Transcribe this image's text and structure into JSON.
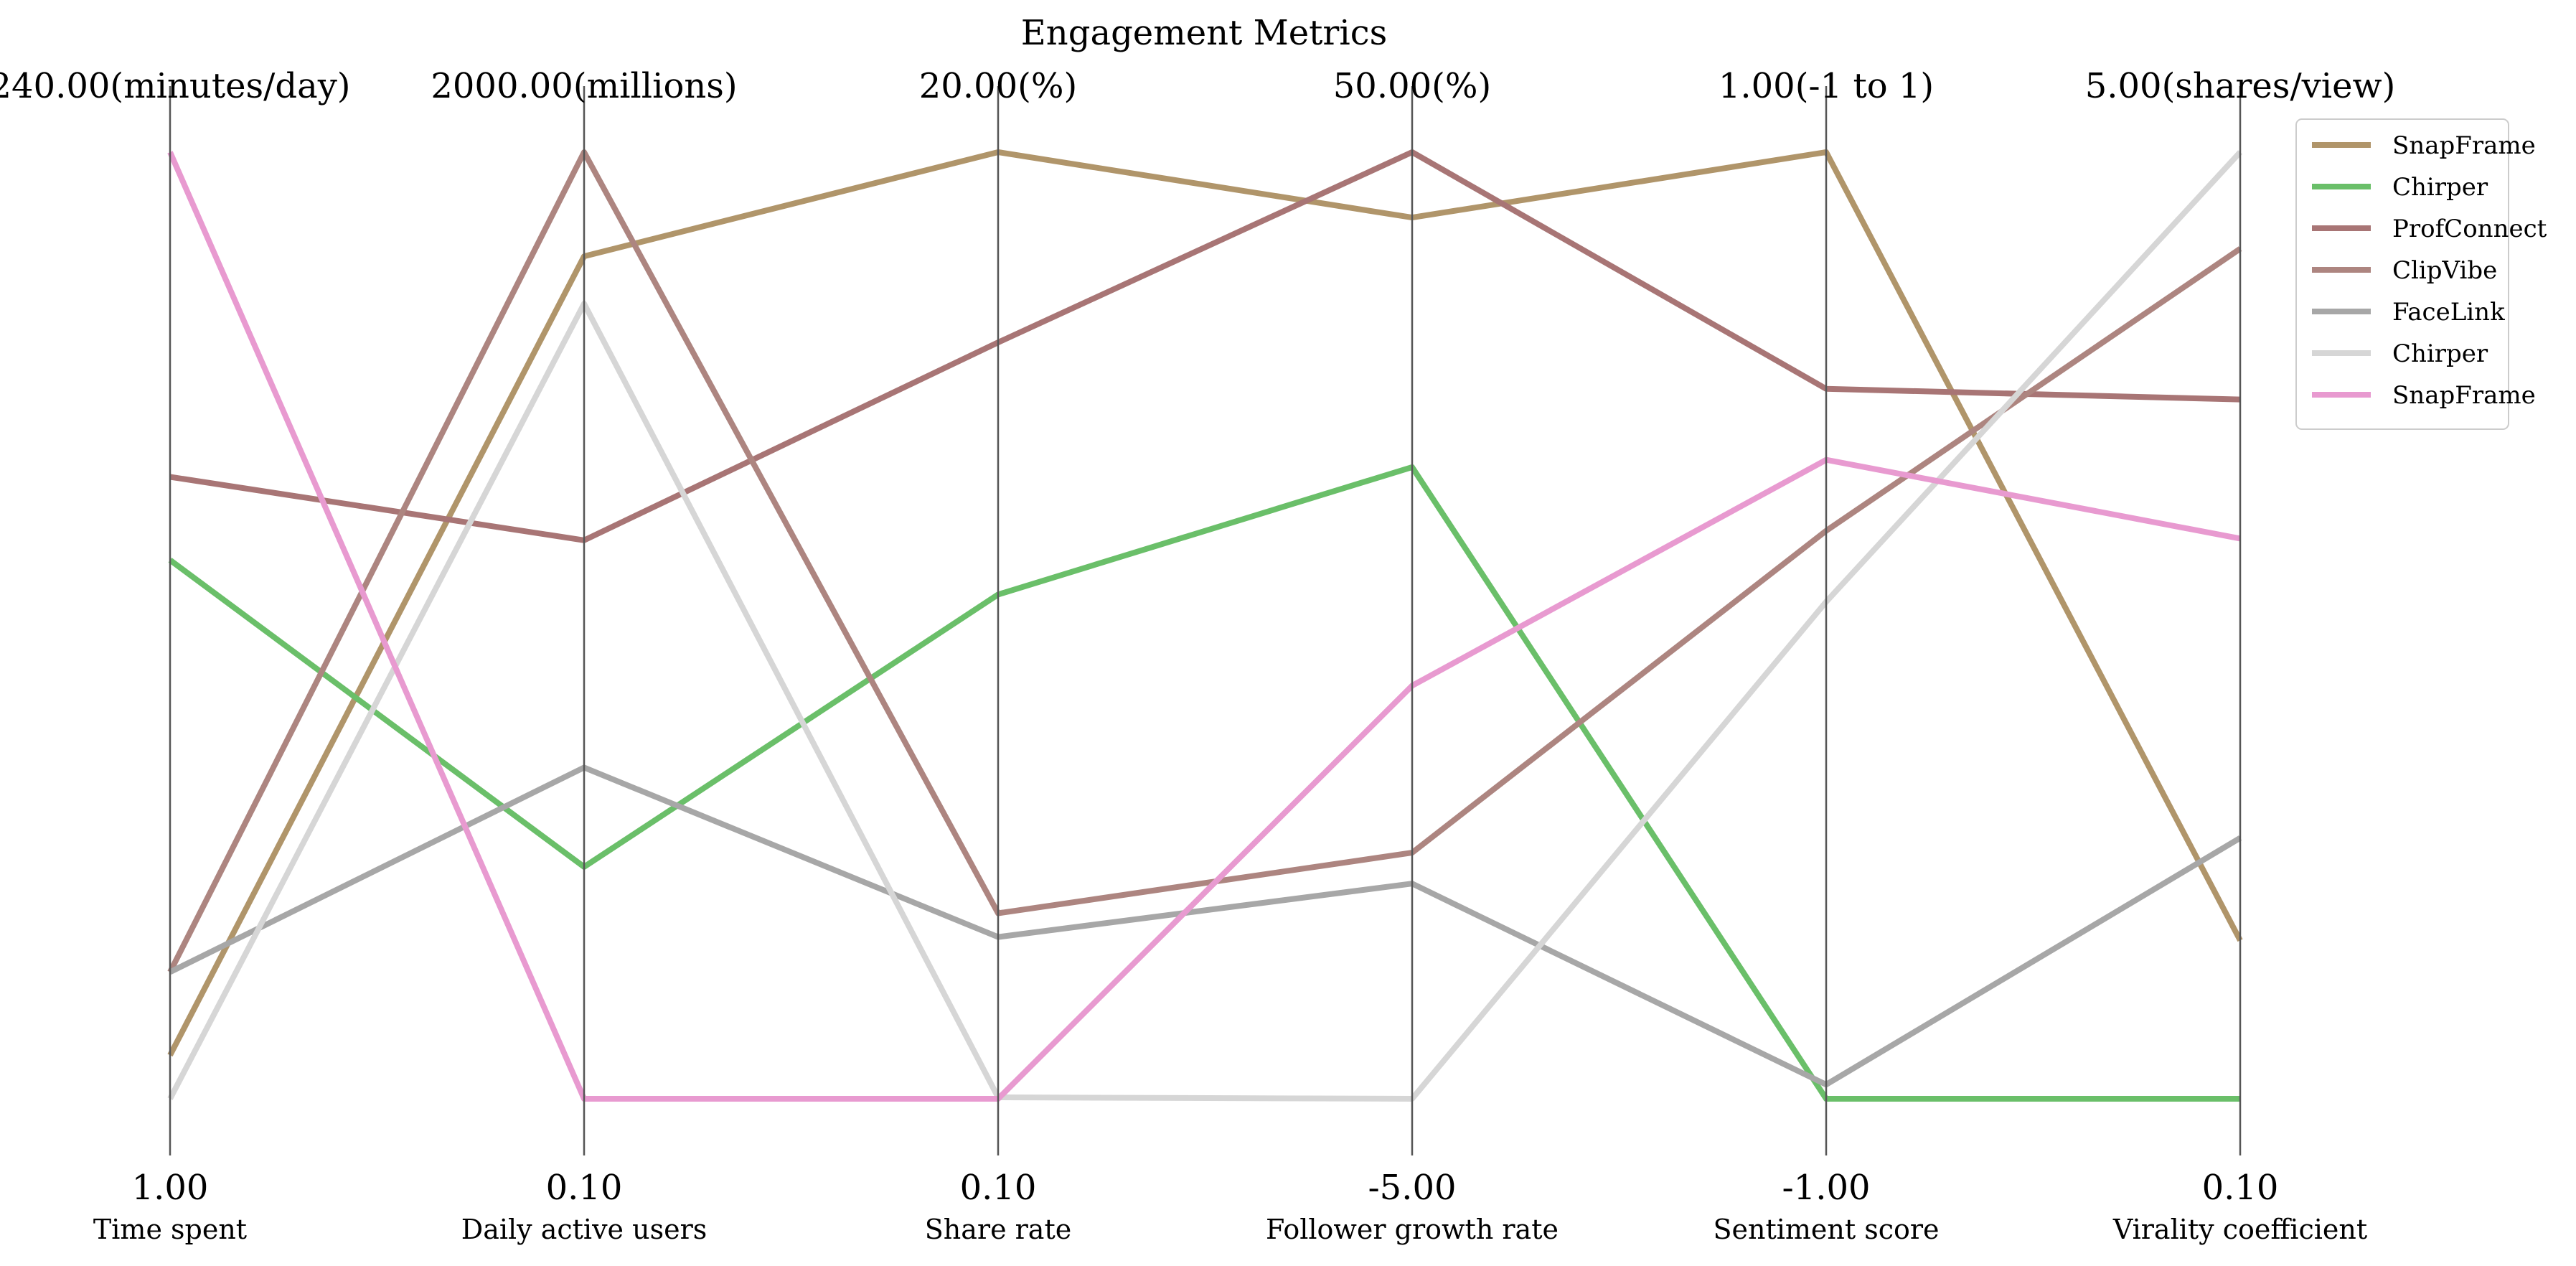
{
  "chart_data": {
    "type": "parallel_coordinates",
    "title": "Engagement Metrics",
    "axes": [
      {
        "name": "Time spent",
        "min_label": "1.00",
        "max_label": "240.00(minutes/day)"
      },
      {
        "name": "Daily active users",
        "min_label": "0.10",
        "max_label": "2000.00(millions)"
      },
      {
        "name": "Share rate",
        "min_label": "0.10",
        "max_label": "20.00(%)"
      },
      {
        "name": "Follower growth rate",
        "min_label": "-5.00",
        "max_label": "50.00(%)"
      },
      {
        "name": "Sentiment score",
        "min_label": "-1.00",
        "max_label": "1.00(-1 to 1)"
      },
      {
        "name": "Virality coefficient",
        "min_label": "0.10",
        "max_label": "5.00(shares/view)"
      }
    ],
    "axis_ranges": [
      [
        1,
        240
      ],
      [
        0.1,
        2000
      ],
      [
        0.1,
        20
      ],
      [
        -5,
        50
      ],
      [
        -1,
        1
      ],
      [
        0.1,
        5
      ]
    ],
    "series": [
      {
        "name": "SnapFrame",
        "color": "#b0956a",
        "values": [
          12,
          1780,
          20,
          46.2,
          1,
          0.92
        ]
      },
      {
        "name": "Chirper",
        "color": "#6abf69",
        "values": [
          137,
          490,
          10.7,
          31.7,
          -1,
          0.1
        ]
      },
      {
        "name": "ProfConnect",
        "color": "#a87575",
        "values": [
          158,
          1180,
          16,
          50,
          0.5,
          3.72
        ]
      },
      {
        "name": "ClipVibe",
        "color": "#ad8580",
        "values": [
          33,
          2000,
          4,
          9.3,
          0.2,
          4.5
        ]
      },
      {
        "name": "FaceLink",
        "color": "#a7a7a7",
        "values": [
          33,
          700,
          3.5,
          7.5,
          -0.97,
          1.45
        ]
      },
      {
        "name": "Chirper",
        "color": "#d6d6d6",
        "values": [
          1,
          1680,
          0.13,
          -5,
          0.05,
          5
        ]
      },
      {
        "name": "SnapFrame",
        "color": "#e89ad0",
        "values": [
          240,
          0.1,
          0.1,
          19,
          0.35,
          3
        ]
      }
    ],
    "legend_position": "top-right",
    "grid": false
  }
}
